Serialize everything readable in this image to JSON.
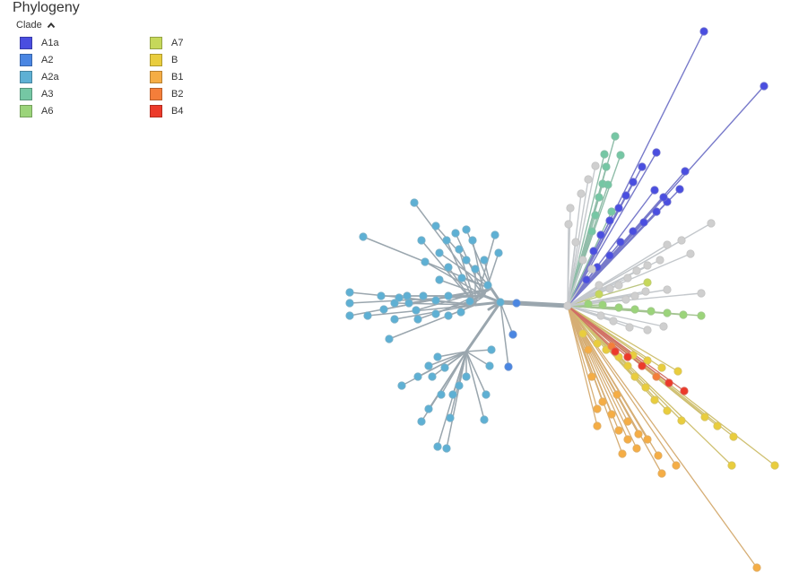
{
  "title": "Phylogeny",
  "legend": {
    "toggle_label": "Clade",
    "toggle_icon": "chevron-up-icon",
    "items": [
      {
        "label": "A1a",
        "color": "#4a4ee0"
      },
      {
        "label": "A2",
        "color": "#4a86e2"
      },
      {
        "label": "A2a",
        "color": "#5eb0d4"
      },
      {
        "label": "A3",
        "color": "#75c7a4"
      },
      {
        "label": "A6",
        "color": "#9bd47a"
      },
      {
        "label": "A7",
        "color": "#c6d85a"
      },
      {
        "label": "B",
        "color": "#e9cd3d"
      },
      {
        "label": "B1",
        "color": "#f5ad45"
      },
      {
        "label": "B2",
        "color": "#f47e3a"
      },
      {
        "label": "B4",
        "color": "#ec3a2a"
      }
    ]
  },
  "tree": {
    "unassigned_color": "#cfcfcf",
    "branch_color": "#9aa6ae"
  }
}
